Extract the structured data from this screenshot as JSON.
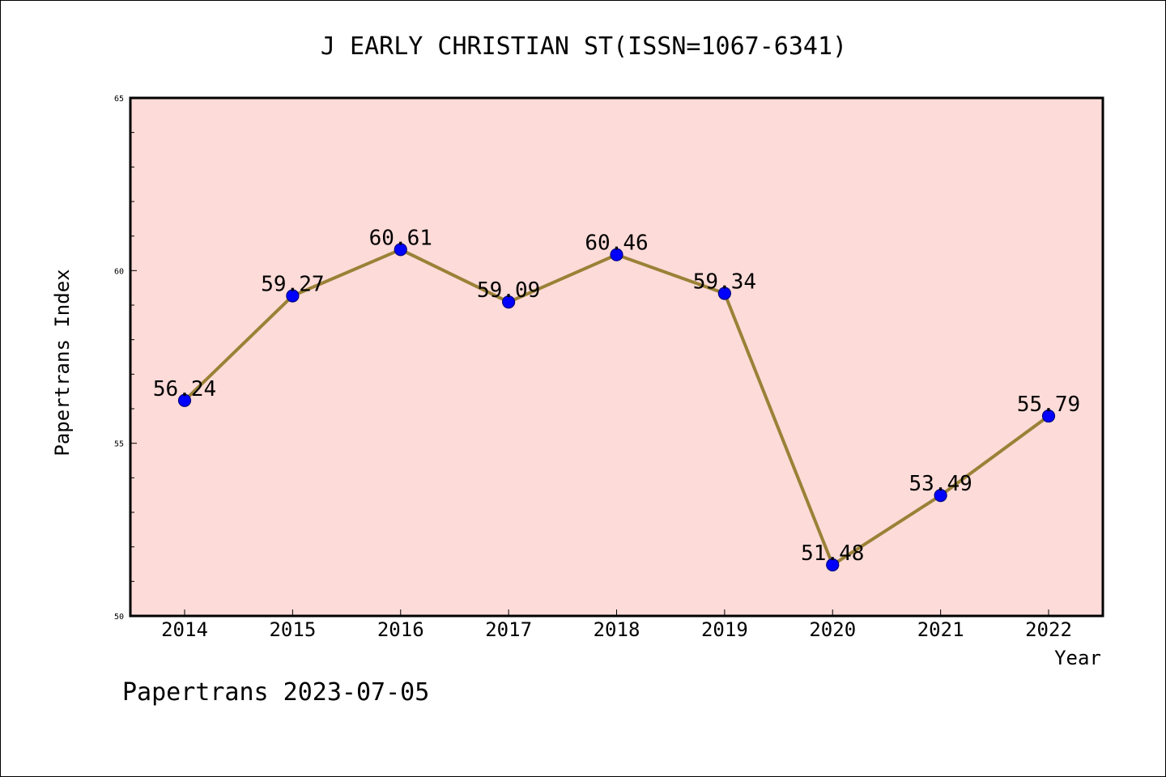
{
  "chart_data": {
    "type": "line",
    "title": "J EARLY CHRISTIAN ST(ISSN=1067-6341)",
    "xlabel": "Year",
    "ylabel": "Papertrans Index",
    "x": [
      "2014",
      "2015",
      "2016",
      "2017",
      "2018",
      "2019",
      "2020",
      "2021",
      "2022"
    ],
    "series": [
      {
        "values": [
          56.24,
          59.27,
          60.61,
          59.09,
          60.46,
          59.34,
          51.48,
          53.49,
          55.79
        ],
        "labels": [
          "56.24",
          "59.27",
          "60.61",
          "59.09",
          "60.46",
          "59.34",
          "51.48",
          "53.49",
          "55.79"
        ]
      }
    ],
    "ylim": [
      50,
      65
    ],
    "y_ticks": [
      "50",
      "55",
      "60",
      "65"
    ],
    "y_minor_step": 1,
    "grid": false,
    "colors": {
      "plot_background": "#fddbd8",
      "line": "#9a8137",
      "marker_fill": "#0000ff",
      "marker_edge": "#000080",
      "axis": "#000000"
    }
  },
  "footer": "Papertrans 2023-07-05"
}
